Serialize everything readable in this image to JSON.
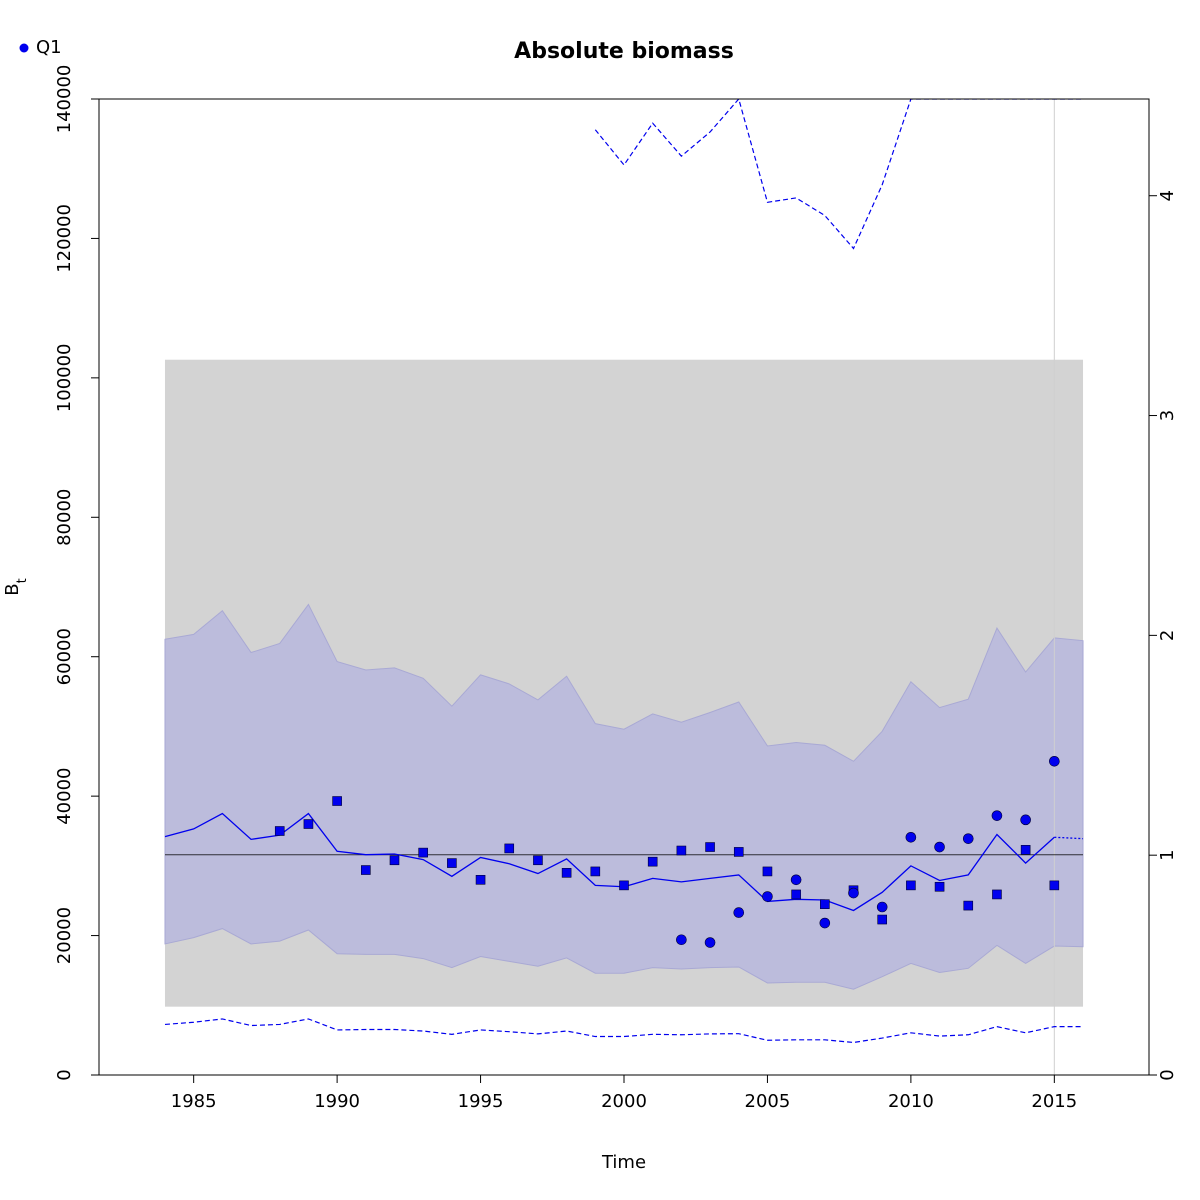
{
  "chart_data": {
    "type": "line",
    "title": "Absolute biomass",
    "xlabel": "Time",
    "ylabel": "B",
    "ylabel_subscript": "t",
    "xlim": [
      1981.7,
      2018.3
    ],
    "ylim": [
      0,
      140000
    ],
    "y2lim": [
      0,
      4.44
    ],
    "x_ticks": [
      1985,
      1990,
      1995,
      2000,
      2005,
      2010,
      2015
    ],
    "y_ticks": [
      0,
      20000,
      40000,
      60000,
      80000,
      100000,
      120000,
      140000
    ],
    "y2_ticks": [
      0,
      1,
      2,
      3,
      4
    ],
    "legend": [
      {
        "label": "Q1",
        "marker": "circle"
      }
    ],
    "reference_line": 31600,
    "vline": 2015,
    "gray_band": {
      "x": [
        1984,
        2016
      ],
      "y": [
        9800,
        102600
      ]
    },
    "years": [
      1984,
      1985,
      1986,
      1987,
      1988,
      1989,
      1990,
      1991,
      1992,
      1993,
      1994,
      1995,
      1996,
      1997,
      1998,
      1999,
      2000,
      2001,
      2002,
      2003,
      2004,
      2005,
      2006,
      2007,
      2008,
      2009,
      2010,
      2011,
      2012,
      2013,
      2014,
      2015,
      2016
    ],
    "estimate": [
      34200,
      35300,
      37500,
      33800,
      34400,
      37500,
      32100,
      31600,
      31700,
      30900,
      28500,
      31200,
      30300,
      28900,
      31000,
      27200,
      27000,
      28200,
      27700,
      28200,
      28700,
      24900,
      25200,
      25100,
      23600,
      26200,
      30000,
      27900,
      28700,
      34500,
      30400,
      34100,
      33900
    ],
    "ci_lower": [
      18800,
      19700,
      21000,
      18800,
      19200,
      20800,
      17400,
      17300,
      17300,
      16700,
      15400,
      17000,
      16300,
      15600,
      16800,
      14600,
      14600,
      15400,
      15200,
      15400,
      15500,
      13200,
      13300,
      13300,
      12300,
      14100,
      16000,
      14700,
      15300,
      18600,
      16000,
      18500,
      18400
    ],
    "ci_upper": [
      62500,
      63200,
      66600,
      60600,
      61900,
      67500,
      59300,
      58100,
      58400,
      56900,
      52900,
      57400,
      56100,
      53800,
      57200,
      50400,
      49600,
      51800,
      50600,
      52000,
      53500,
      47200,
      47700,
      47300,
      45000,
      49300,
      56400,
      52700,
      53900,
      64100,
      57800,
      62700,
      62300
    ],
    "second_axis_upper": [
      null,
      null,
      null,
      null,
      null,
      null,
      null,
      null,
      null,
      null,
      null,
      null,
      null,
      null,
      null,
      4.3,
      4.14,
      4.33,
      4.18,
      4.29,
      4.44,
      3.97,
      3.99,
      3.91,
      3.76,
      4.05,
      4.44,
      4.44,
      4.44,
      4.44,
      4.44,
      4.44,
      4.44
    ],
    "second_axis_lower": [
      0.23,
      0.24,
      0.255,
      0.225,
      0.23,
      0.255,
      0.205,
      0.207,
      0.207,
      0.2,
      0.185,
      0.205,
      0.197,
      0.187,
      0.2,
      0.175,
      0.175,
      0.185,
      0.183,
      0.187,
      0.188,
      0.158,
      0.16,
      0.16,
      0.148,
      0.168,
      0.192,
      0.177,
      0.183,
      0.22,
      0.192,
      0.22,
      0.22
    ],
    "series": [
      {
        "name": "index points (squares)",
        "marker": "square",
        "x": [
          1988,
          1989,
          1990,
          1991,
          1992,
          1993,
          1994,
          1995,
          1996,
          1997,
          1998,
          1999,
          2000,
          2001,
          2002,
          2003,
          2004,
          2005,
          2006,
          2007,
          2008,
          2009,
          2010,
          2011,
          2012,
          2013,
          2014,
          2015
        ],
        "y": [
          35000,
          36000,
          39300,
          29400,
          30800,
          31900,
          30400,
          28000,
          32500,
          30800,
          29000,
          29200,
          27200,
          30600,
          32200,
          32700,
          32000,
          29200,
          25900,
          24500,
          26500,
          22300,
          27200,
          27000,
          24300,
          25900,
          32300,
          27200
        ]
      },
      {
        "name": "Q1",
        "marker": "circle",
        "x": [
          2002,
          2003,
          2004,
          2005,
          2006,
          2007,
          2008,
          2009,
          2010,
          2011,
          2012,
          2013,
          2014,
          2015
        ],
        "y": [
          19400,
          19000,
          23300,
          25600,
          28000,
          21800,
          26100,
          24100,
          34100,
          32700,
          33900,
          37200,
          36600,
          45000
        ]
      }
    ],
    "colors": {
      "line": "#0000ee",
      "ci_fill": "#bcbcdc",
      "ci_border": "#a9a9d4",
      "gray_band": "#d3d3d3",
      "reference": "#000000",
      "vline": "#cfcfcf"
    }
  }
}
